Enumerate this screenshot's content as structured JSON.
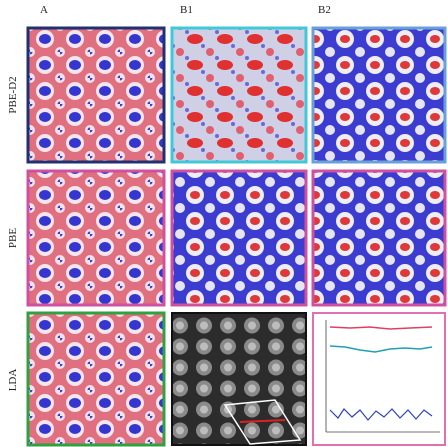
{
  "columns": [
    "A",
    "B1",
    "B2"
  ],
  "rows": [
    "PBE-D2",
    "PBE",
    "LDA"
  ]
}
